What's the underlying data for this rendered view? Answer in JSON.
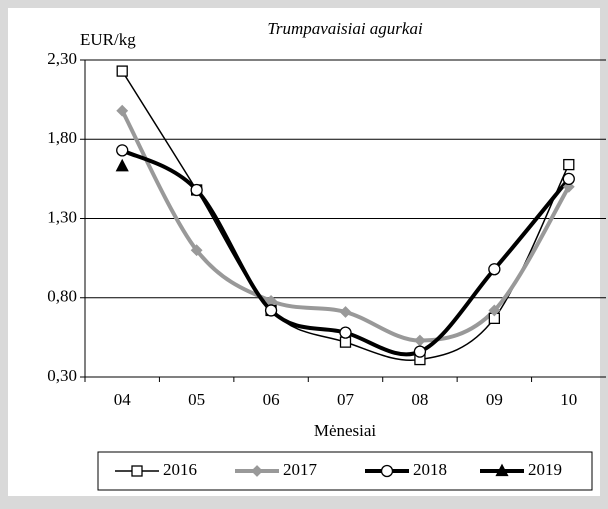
{
  "chart_data": {
    "type": "line",
    "title": "Trumpavaisiai agurkai",
    "y_label": "EUR/kg",
    "x_label": "Mėnesiai",
    "categories": [
      "04",
      "05",
      "06",
      "07",
      "08",
      "09",
      "10"
    ],
    "ylim": [
      0.3,
      2.3
    ],
    "yticks": [
      {
        "value": 0.3,
        "label": "0,30"
      },
      {
        "value": 0.8,
        "label": "0,80"
      },
      {
        "value": 1.3,
        "label": "1,30"
      },
      {
        "value": 1.8,
        "label": "1,80"
      },
      {
        "value": 2.3,
        "label": "2,30"
      }
    ],
    "grid": true,
    "legend": "bottom",
    "series": [
      {
        "name": "2016",
        "color": "#000000",
        "marker": "square",
        "line_width": 1.5,
        "values": [
          2.23,
          1.48,
          0.72,
          0.52,
          0.41,
          0.67,
          1.64
        ]
      },
      {
        "name": "2017",
        "color": "#999999",
        "marker": "diamond",
        "line_width": 4,
        "values": [
          1.98,
          1.1,
          0.78,
          0.71,
          0.53,
          0.72,
          1.5
        ]
      },
      {
        "name": "2018",
        "color": "#000000",
        "marker": "circle",
        "line_width": 4,
        "values": [
          1.73,
          1.48,
          0.72,
          0.58,
          0.46,
          0.98,
          1.55
        ]
      },
      {
        "name": "2019",
        "color": "#000000",
        "marker": "triangle",
        "line_width": 4,
        "values": [
          1.63,
          null,
          null,
          null,
          null,
          null,
          null
        ]
      }
    ]
  }
}
